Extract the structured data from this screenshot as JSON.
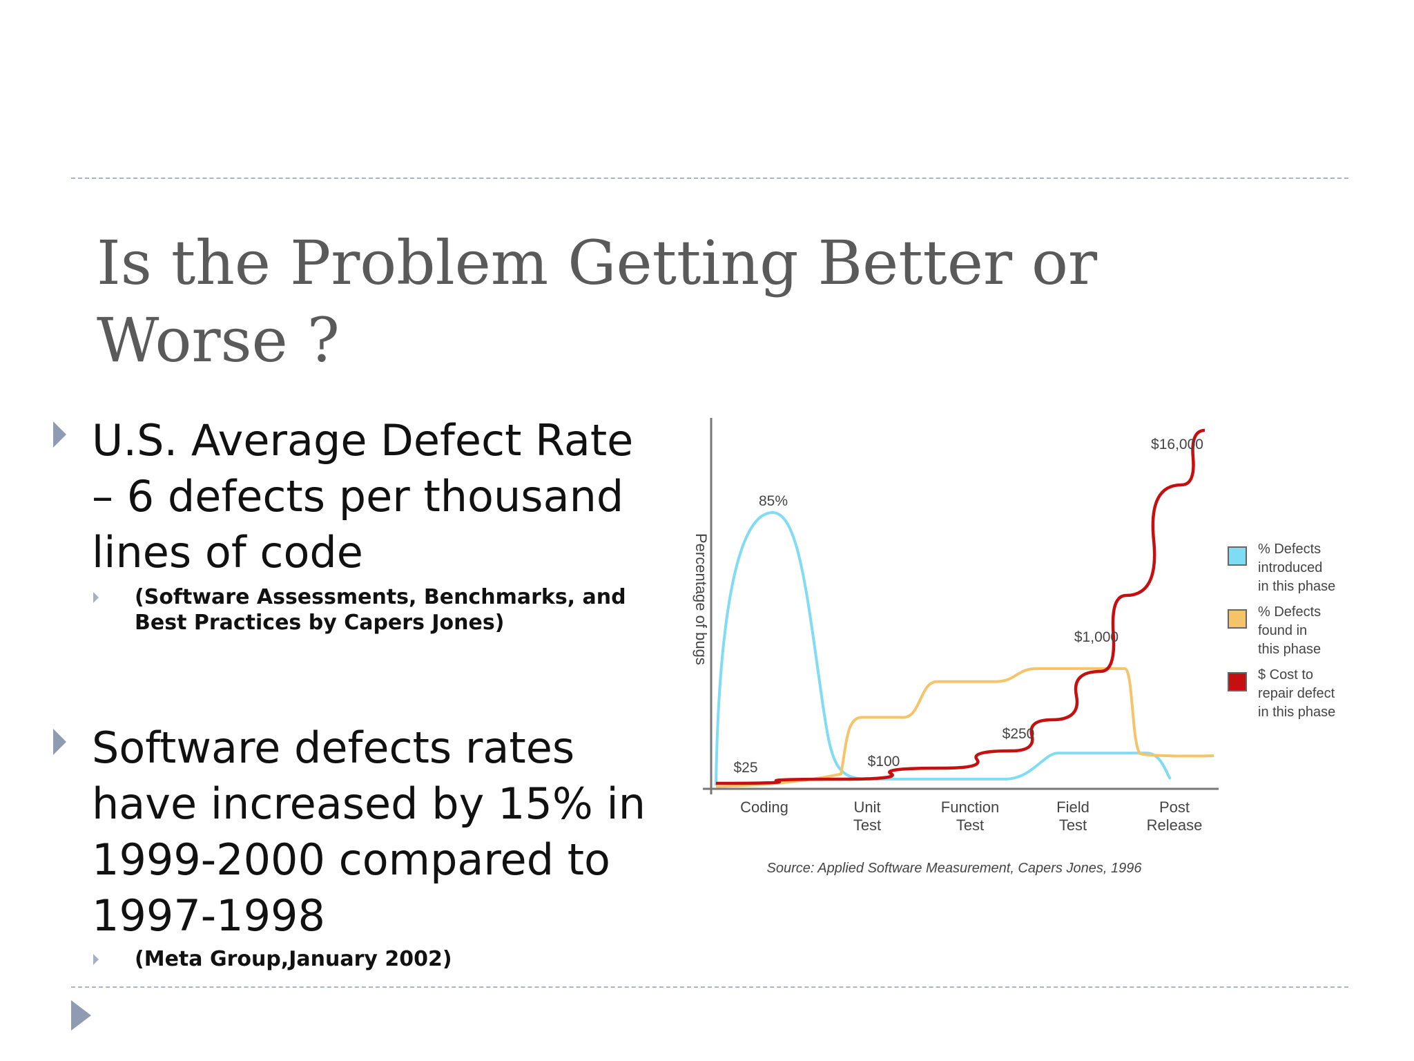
{
  "slide": {
    "title": "Is the Problem Getting Better or Worse ?",
    "bullets": [
      {
        "text": "U.S. Average Defect Rate – 6 defects per thousand lines of code",
        "sub": "(Software Assessments, Benchmarks, and Best Practices by Capers Jones)"
      },
      {
        "text": "Software defects rates have increased by 15% in 1999-2000 compared to 1997-1998",
        "sub": "(Meta Group,January 2002)"
      }
    ]
  },
  "chart_data": {
    "type": "line",
    "ylabel": "Percentage of bugs",
    "source": "Source: Applied Software Measurement, Capers Jones, 1996",
    "categories": [
      "Coding",
      "Unit\nTest",
      "Function\nTest",
      "Field\nTest",
      "Post\nRelease"
    ],
    "series": [
      {
        "name": "% Defects introduced in this phase",
        "color": "#7fdcf4",
        "values": [
          85,
          3,
          3,
          11,
          3
        ]
      },
      {
        "name": "% Defects found in this phase",
        "color": "#f5c46a",
        "values": [
          2,
          22,
          33,
          37,
          10
        ]
      },
      {
        "name": "$ Cost to repair defect in this phase",
        "color": "#c41010",
        "values": [
          25,
          100,
          250,
          1000,
          16000
        ]
      }
    ],
    "annotations": [
      "85%",
      "$25",
      "$100",
      "$250",
      "$1,000",
      "$16,000"
    ],
    "legend_position": "right",
    "grid": false
  }
}
